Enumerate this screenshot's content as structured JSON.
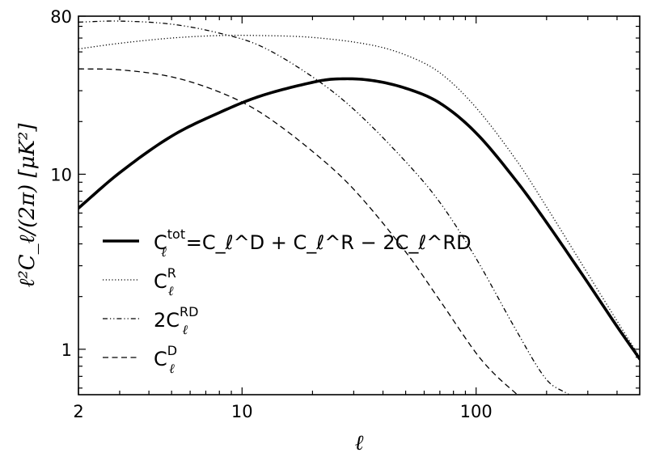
{
  "chart_data": {
    "type": "line",
    "xlabel": "ℓ",
    "ylabel": "ℓ²C_ℓ/(2π) [μK²]",
    "xscale": "log",
    "yscale": "log",
    "xlim": [
      2,
      500
    ],
    "ylim": [
      0.55,
      80
    ],
    "grid": false,
    "legend_position": "left-lower",
    "x_ticks": [
      {
        "value": 2,
        "label": "2"
      },
      {
        "value": 10,
        "label": "10"
      },
      {
        "value": 100,
        "label": "100"
      }
    ],
    "y_ticks": [
      {
        "value": 1,
        "label": "1"
      },
      {
        "value": 10,
        "label": "10"
      },
      {
        "value": 80,
        "label": "80"
      }
    ],
    "series": [
      {
        "key": "tot",
        "style": "solid-thick",
        "legend": {
          "base": "C",
          "sub": "ℓ",
          "sup": "tot",
          "rhs": "=C_ℓ^D + C_ℓ^R − 2C_ℓ^RD"
        },
        "x": [
          2,
          3,
          5,
          8,
          12,
          20,
          25,
          35,
          50,
          70,
          100,
          150,
          200,
          300,
          400,
          500
        ],
        "y": [
          6.4,
          10.2,
          16.5,
          22.5,
          28.0,
          33.5,
          35.0,
          34.5,
          31.0,
          25.5,
          17.2,
          9.0,
          5.3,
          2.4,
          1.35,
          0.88
        ]
      },
      {
        "key": "R",
        "style": "dotted",
        "legend": {
          "base": "C",
          "sub": "ℓ",
          "sup": "R"
        },
        "x": [
          2,
          3,
          5,
          8,
          12,
          20,
          35,
          50,
          70,
          100,
          150,
          200,
          300,
          400,
          500
        ],
        "y": [
          52,
          56,
          60,
          62,
          62,
          60.5,
          55,
          48,
          38,
          24,
          11.8,
          6.5,
          2.7,
          1.45,
          0.9
        ]
      },
      {
        "key": "RD",
        "style": "dash-dot-dot",
        "legend": {
          "base": "2C",
          "sub": "ℓ",
          "sup": "RD"
        },
        "x": [
          2,
          3,
          5,
          8,
          12,
          20,
          30,
          50,
          70,
          100,
          150,
          200,
          250
        ],
        "y": [
          74,
          75,
          72,
          64,
          54,
          36,
          23.5,
          11.8,
          6.9,
          3.3,
          1.25,
          0.67,
          0.55
        ]
      },
      {
        "key": "D",
        "style": "dashed",
        "legend": {
          "base": "C",
          "sub": "ℓ",
          "sup": "D"
        },
        "x": [
          2,
          3,
          5,
          8,
          12,
          20,
          30,
          50,
          70,
          100,
          120,
          150
        ],
        "y": [
          40,
          39.5,
          36,
          29.5,
          22.5,
          13.5,
          8.2,
          3.6,
          1.9,
          0.95,
          0.72,
          0.55
        ]
      }
    ]
  }
}
